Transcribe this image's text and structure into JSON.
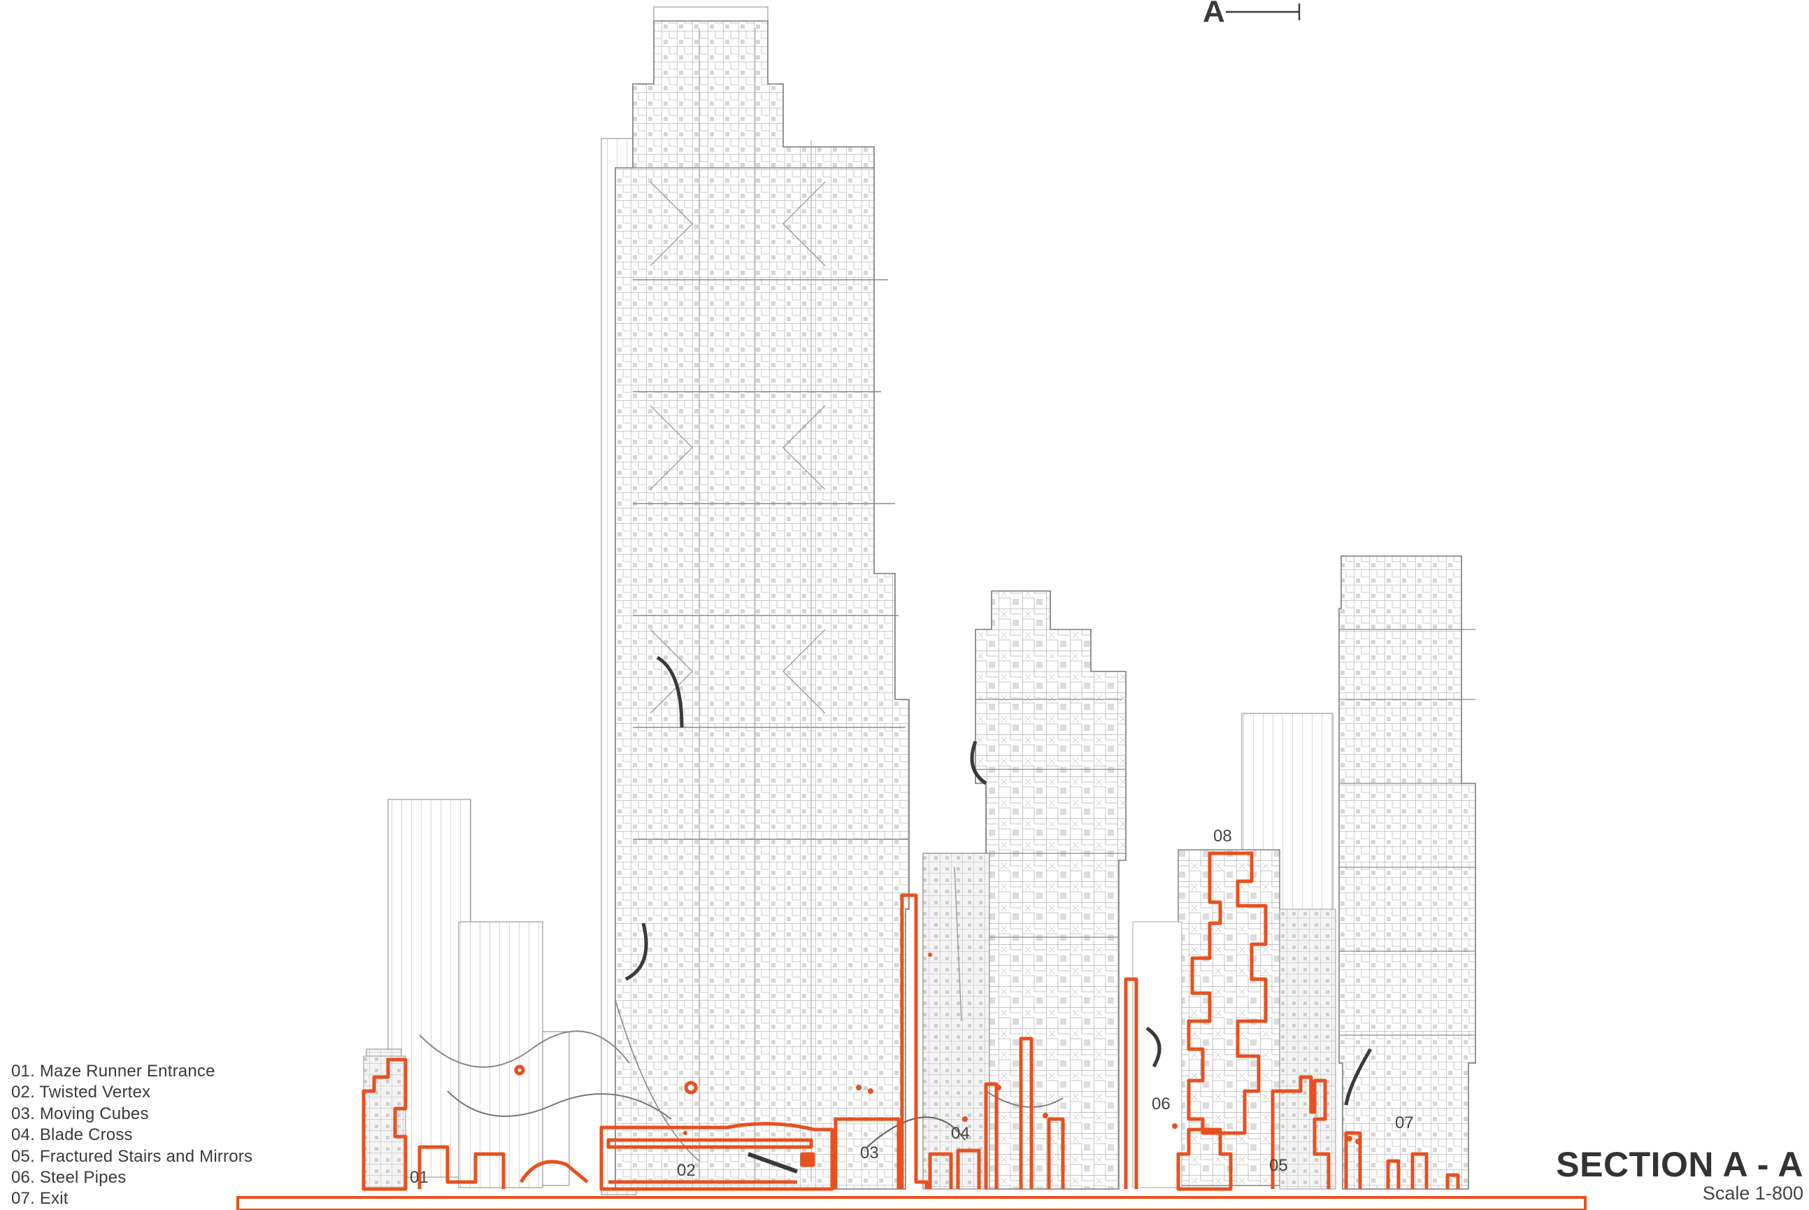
{
  "section_marker": {
    "letter": "A"
  },
  "title": {
    "heading": "SECTION A - A",
    "scale": "Scale 1-800"
  },
  "legend": [
    "01. Maze Runner Entrance",
    "02. Twisted Vertex",
    "03. Moving Cubes",
    "04. Blade Cross",
    "05. Fractured Stairs and Mirrors",
    "06. Steel Pipes",
    "07. Exit"
  ],
  "area_numbers": [
    "01",
    "02",
    "03",
    "04",
    "05",
    "06",
    "07",
    "08"
  ],
  "colors": {
    "highlight": "#e8501e",
    "linework": "#7a7a7a",
    "text": "#3a3a3a",
    "dark": "#333333"
  }
}
